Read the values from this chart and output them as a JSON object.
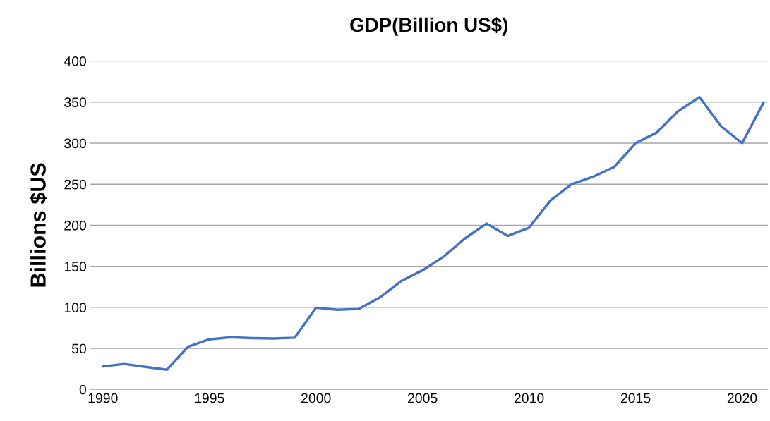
{
  "chart_data": {
    "type": "line",
    "title": "GDP(Billion US$)",
    "ylabel": "Billions $US",
    "x": [
      1990,
      1991,
      1992,
      1993,
      1994,
      1995,
      1996,
      1997,
      1998,
      1999,
      2000,
      2001,
      2002,
      2003,
      2004,
      2005,
      2006,
      2007,
      2008,
      2009,
      2010,
      2011,
      2012,
      2013,
      2014,
      2015,
      2016,
      2017,
      2018,
      2019,
      2020,
      2021
    ],
    "series": [
      {
        "color": "#4472c4",
        "values": [
          28,
          31,
          27.5,
          24,
          52,
          61,
          63.5,
          62.5,
          62,
          63,
          99.5,
          97,
          98,
          112,
          132,
          145,
          162,
          184,
          202,
          187,
          197,
          230,
          250,
          259,
          271,
          300,
          313,
          339,
          356,
          321,
          300,
          349
        ]
      }
    ],
    "xlim": [
      1989.4,
      2021.2
    ],
    "xticks": [
      1990,
      1995,
      2000,
      2005,
      2010,
      2015,
      2020
    ],
    "ylim": [
      0,
      400
    ],
    "yticks": [
      0,
      50,
      100,
      150,
      200,
      250,
      300,
      350,
      400
    ],
    "grid": "y",
    "marker": "none",
    "line_style": "solid"
  }
}
